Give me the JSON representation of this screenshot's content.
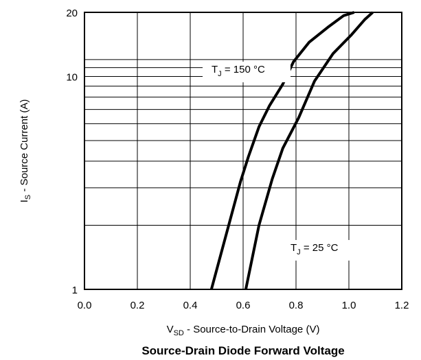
{
  "chart_data": {
    "type": "line",
    "title": "Source-Drain Diode Forward Voltage",
    "xlabel": {
      "main": "V",
      "sub": "SD",
      "rest": " - Source-to-Drain Voltage (V)"
    },
    "ylabel": {
      "main": "I",
      "sub": "S",
      "rest": " - Source Current (A)"
    },
    "xlim": [
      0.0,
      1.2
    ],
    "ylim": [
      1,
      20
    ],
    "yscale": "log",
    "x_ticks": [
      0.0,
      0.2,
      0.4,
      0.6,
      0.8,
      1.0,
      1.2
    ],
    "x_tick_labels": [
      "0.0",
      "0.2",
      "0.4",
      "0.6",
      "0.8",
      "1.0",
      "1.2"
    ],
    "y_ticks": [
      1,
      10,
      20
    ],
    "y_tick_labels": [
      "1",
      "10",
      "20"
    ],
    "y_minor_gridlines": [
      2,
      3,
      4,
      5,
      6,
      7,
      8,
      9,
      10,
      11,
      12
    ],
    "grid": true,
    "series": [
      {
        "name": "T_J = 150 °C",
        "label": {
          "main": "T",
          "sub": "J",
          "rest": " = 150 °C"
        },
        "x": [
          0.48,
          0.53,
          0.59,
          0.62,
          0.66,
          0.7,
          0.75,
          0.79,
          0.85,
          0.92,
          0.98,
          1.02
        ],
        "y": [
          1.0,
          1.7,
          3.2,
          4.2,
          5.8,
          7.3,
          9.2,
          11.7,
          14.5,
          17.0,
          19.3,
          20.0
        ]
      },
      {
        "name": "T_J = 25 °C",
        "label": {
          "main": "T",
          "sub": "J",
          "rest": " = 25 °C"
        },
        "x": [
          0.61,
          0.66,
          0.71,
          0.75,
          0.81,
          0.87,
          0.94,
          1.01,
          1.06,
          1.09
        ],
        "y": [
          1.0,
          2.0,
          3.3,
          4.6,
          6.4,
          9.5,
          12.8,
          15.7,
          18.5,
          20.0
        ]
      }
    ]
  }
}
